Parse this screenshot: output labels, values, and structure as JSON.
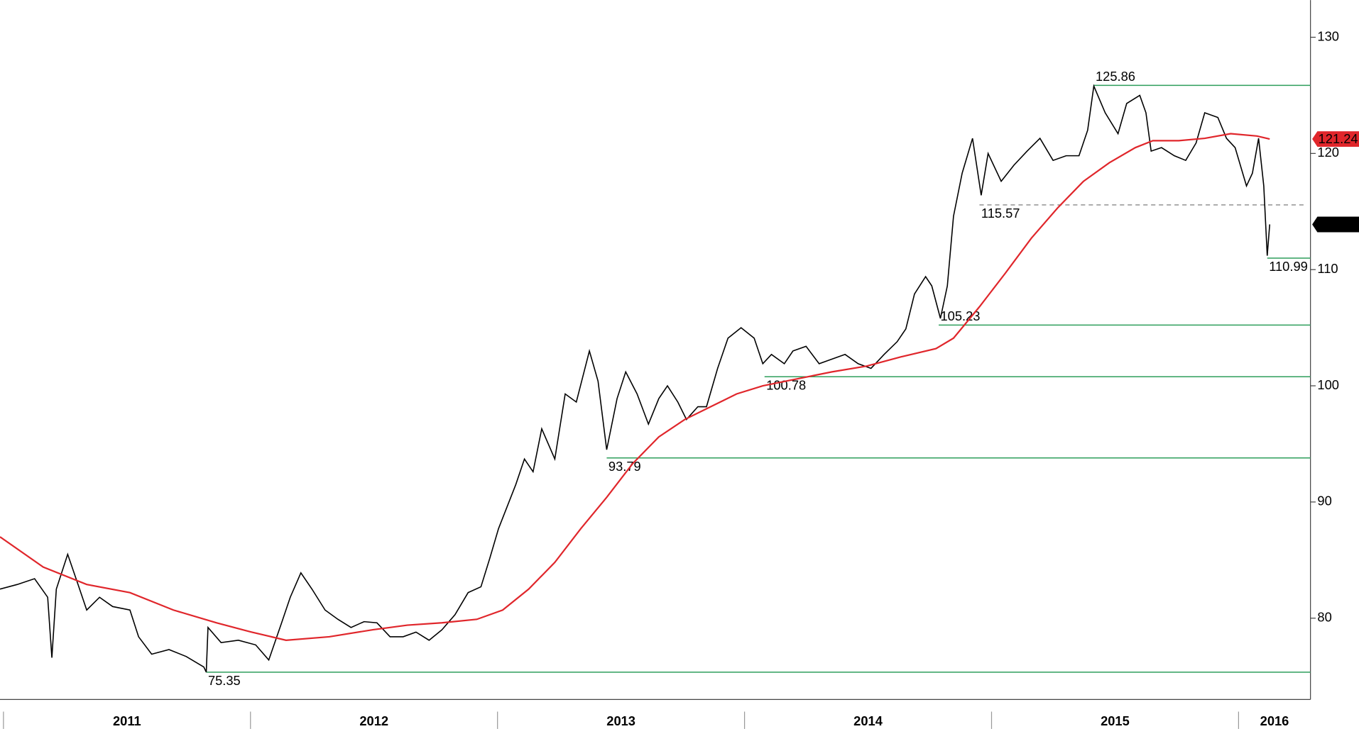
{
  "chart_data": {
    "type": "line",
    "xlim": [
      2010.986,
      2016.291
    ],
    "xticks": [
      2011,
      2012,
      2013,
      2014,
      2015,
      2016
    ],
    "ylim": [
      73,
      133.2
    ],
    "yticks": [
      80,
      90,
      100,
      110,
      120,
      130
    ],
    "series": [
      {
        "color": "#000000",
        "last_badge": true,
        "badge_color": "#000000",
        "x": [
          2010.986,
          2011.056,
          2011.126,
          2011.179,
          2011.196,
          2011.214,
          2011.26,
          2011.302,
          2011.337,
          2011.389,
          2011.442,
          2011.512,
          2011.547,
          2011.6,
          2011.67,
          2011.74,
          2011.811,
          2011.821,
          2011.828,
          2011.881,
          2011.951,
          2012.021,
          2012.074,
          2012.126,
          2012.161,
          2012.204,
          2012.249,
          2012.302,
          2012.354,
          2012.407,
          2012.46,
          2012.512,
          2012.565,
          2012.618,
          2012.67,
          2012.723,
          2012.775,
          2012.828,
          2012.881,
          2012.933,
          2012.968,
          2013.004,
          2013.039,
          2013.074,
          2013.109,
          2013.144,
          2013.179,
          2013.232,
          2013.274,
          2013.319,
          2013.372,
          2013.407,
          2013.442,
          2013.484,
          2013.519,
          2013.565,
          2013.611,
          2013.653,
          2013.688,
          2013.73,
          2013.765,
          2013.811,
          2013.846,
          2013.891,
          2013.933,
          2013.986,
          2014.039,
          2014.074,
          2014.109,
          2014.161,
          2014.196,
          2014.249,
          2014.302,
          2014.354,
          2014.407,
          2014.46,
          2014.512,
          2014.565,
          2014.618,
          2014.653,
          2014.688,
          2014.733,
          2014.758,
          2014.793,
          2014.821,
          2014.846,
          2014.881,
          2014.923,
          2014.958,
          2014.986,
          2015.039,
          2015.091,
          2015.144,
          2015.196,
          2015.249,
          2015.302,
          2015.354,
          2015.389,
          2015.414,
          2015.46,
          2015.512,
          2015.547,
          2015.6,
          2015.625,
          2015.646,
          2015.688,
          2015.74,
          2015.786,
          2015.828,
          2015.863,
          2015.916,
          2015.951,
          2015.986,
          2016.032,
          2016.056,
          2016.081,
          2016.102,
          2016.116,
          2016.126
        ],
        "values": [
          82.5,
          82.9,
          83.4,
          81.8,
          76.6,
          82.5,
          85.5,
          82.9,
          80.7,
          81.8,
          81.0,
          80.7,
          78.4,
          76.9,
          77.3,
          76.7,
          75.8,
          75.35,
          79.2,
          77.9,
          78.1,
          77.7,
          76.4,
          79.6,
          81.8,
          83.9,
          82.5,
          80.7,
          79.9,
          79.2,
          79.7,
          79.6,
          78.4,
          78.4,
          78.8,
          78.1,
          79.0,
          80.3,
          82.2,
          82.7,
          85.1,
          87.7,
          89.6,
          91.5,
          93.7,
          92.6,
          96.3,
          93.7,
          99.3,
          98.6,
          103.0,
          100.4,
          94.5,
          98.9,
          101.2,
          99.3,
          96.7,
          98.9,
          100.0,
          98.6,
          97.1,
          98.2,
          98.2,
          101.5,
          104.1,
          105.0,
          104.1,
          101.9,
          102.7,
          101.9,
          103.0,
          103.4,
          101.9,
          102.3,
          102.7,
          101.9,
          101.5,
          102.7,
          103.8,
          104.9,
          107.9,
          109.4,
          108.6,
          105.8,
          108.6,
          114.6,
          118.3,
          121.3,
          116.4,
          120.0,
          117.6,
          119.0,
          120.2,
          121.3,
          119.4,
          119.8,
          119.8,
          122.0,
          125.8,
          123.5,
          121.7,
          124.3,
          125.0,
          123.5,
          120.2,
          120.5,
          119.8,
          119.4,
          120.9,
          123.5,
          123.1,
          121.3,
          120.5,
          117.2,
          118.3,
          121.3,
          117.2,
          111.2,
          113.89
        ]
      },
      {
        "color": "#e0262b",
        "last_badge": true,
        "badge_color": "#e0262b",
        "x": [
          2010.986,
          2011.161,
          2011.337,
          2011.512,
          2011.688,
          2011.863,
          2012.004,
          2012.144,
          2012.319,
          2012.495,
          2012.635,
          2012.775,
          2012.916,
          2013.021,
          2013.126,
          2013.232,
          2013.337,
          2013.442,
          2013.547,
          2013.653,
          2013.758,
          2013.863,
          2013.968,
          2014.074,
          2014.214,
          2014.354,
          2014.495,
          2014.635,
          2014.775,
          2014.846,
          2014.951,
          2015.056,
          2015.161,
          2015.267,
          2015.372,
          2015.477,
          2015.582,
          2015.653,
          2015.758,
          2015.863,
          2015.968,
          2016.074,
          2016.126
        ],
        "values": [
          87.0,
          84.4,
          82.9,
          82.2,
          80.7,
          79.6,
          78.8,
          78.1,
          78.4,
          79.0,
          79.4,
          79.6,
          79.9,
          80.7,
          82.5,
          84.8,
          87.7,
          90.4,
          93.3,
          95.6,
          97.1,
          98.2,
          99.3,
          100.0,
          100.6,
          101.2,
          101.7,
          102.5,
          103.2,
          104.1,
          106.8,
          109.7,
          112.7,
          115.3,
          117.6,
          119.2,
          120.5,
          121.1,
          121.1,
          121.3,
          121.7,
          121.5,
          121.24
        ]
      }
    ],
    "levels": [
      {
        "value": 125.86,
        "x": 2015.414,
        "color": "#2e9e5b",
        "dashed": false,
        "label_pos": "above"
      },
      {
        "value": 115.57,
        "x": 2014.951,
        "color": "#888888",
        "dashed": true,
        "label_pos": "below"
      },
      {
        "value": 110.99,
        "x": 2016.116,
        "color": "#2e9e5b",
        "dashed": false,
        "label_pos": "below"
      },
      {
        "value": 105.23,
        "x": 2014.786,
        "color": "#2e9e5b",
        "dashed": false,
        "label_pos": "above"
      },
      {
        "value": 100.78,
        "x": 2014.081,
        "color": "#2e9e5b",
        "dashed": false,
        "label_pos": "below"
      },
      {
        "value": 93.79,
        "x": 2013.442,
        "color": "#2e9e5b",
        "dashed": false,
        "label_pos": "below"
      },
      {
        "value": 75.35,
        "x": 2011.821,
        "color": "#2e9e5b",
        "dashed": false,
        "label_pos": "below"
      }
    ]
  }
}
